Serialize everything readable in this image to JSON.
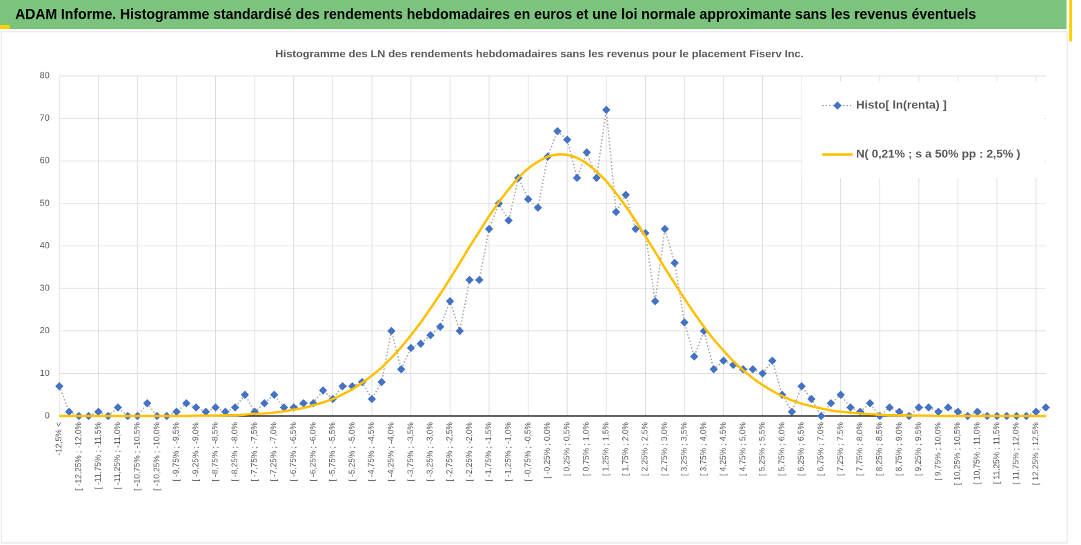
{
  "header": {
    "title": "ADAM Informe. Histogramme standardisé des rendements hebdomadaires en euros et une loi normale approximante sans les revenus éventuels"
  },
  "chart_data": {
    "type": "line",
    "title": "Histogramme des LN des rendements hebdomadaires sans les revenus pour le placement Fiserv Inc.",
    "categories": [
      "-12,5% <",
      null,
      "[ -12,25% ; -12,0%",
      null,
      "[ -11,75% ; -11,5%",
      null,
      "[ -11,25% ; -11,0%",
      null,
      "[ -10,75% ; -10,5%",
      null,
      "[ -10,25% ; -10,0%",
      null,
      "[ -9,75% ; -9,5%",
      null,
      "[ -9,25% ; -9,0%",
      null,
      "[ -8,75% ; -8,5%",
      null,
      "[ -8,25% ; -8,0%",
      null,
      "[ -7,75% ; -7,5%",
      null,
      "[ -7,25% ; -7,0%",
      null,
      "[ -6,75% ; -6,5%",
      null,
      "[ -6,25% ; -6,0%",
      null,
      "[ -5,75% ; -5,5%",
      null,
      "[ -5,25% ; -5,0%",
      null,
      "[ -4,75% ; -4,5%",
      null,
      "[ -4,25% ; -4,0%",
      null,
      "[ -3,75% ; -3,5%",
      null,
      "[ -3,25% ; -3,0%",
      null,
      "[ -2,75% ; -2,5%",
      null,
      "[ -2,25% ; -2,0%",
      null,
      "[ -1,75% ; -1,5%",
      null,
      "[ -1,25% ; -1,0%",
      null,
      "[ -0,75% ; -0,5%",
      null,
      "[ -0,25% ; 0,0%",
      null,
      "[ 0,25% ; 0,5%",
      null,
      "[ 0,75% ; 1,0%",
      null,
      "[ 1,25% ; 1,5%",
      null,
      "[ 1,75% ; 2,0%",
      null,
      "[ 2,25% ; 2,5%",
      null,
      "[ 2,75% ; 3,0%",
      null,
      "[ 3,25% ; 3,5%",
      null,
      "[ 3,75% ; 4,0%",
      null,
      "[ 4,25% ; 4,5%",
      null,
      "[ 4,75% ; 5,0%",
      null,
      "[ 5,25% ; 5,5%",
      null,
      "[ 5,75% ; 6,0%",
      null,
      "[ 6,25% ; 6,5%",
      null,
      "[ 6,75% ; 7,0%",
      null,
      "[ 7,25% ; 7,5%",
      null,
      "[ 7,75% ; 8,0%",
      null,
      "[ 8,25% ; 8,5%",
      null,
      "[ 8,75% ; 9,0%",
      null,
      "[ 9,25% ; 9,5%",
      null,
      "[ 9,75% ; 10,0%",
      null,
      "[ 10,25% ; 10,5%",
      null,
      "[ 10,75% ; 11,0%",
      null,
      "[ 11,25% ; 11,5%",
      null,
      "[ 11,75% ; 12,0%",
      null,
      "[ 12,25% ; 12,5%",
      null
    ],
    "series": [
      {
        "name": "Histo[ ln(renta) ]",
        "color": "#4472c4",
        "line_color": "#a5a5a5",
        "line_style": "dotted",
        "marker": "diamond",
        "values": [
          7,
          1,
          0,
          0,
          1,
          0,
          2,
          0,
          0,
          3,
          0,
          0,
          1,
          3,
          2,
          1,
          2,
          1,
          2,
          5,
          1,
          3,
          5,
          2,
          2,
          3,
          3,
          6,
          4,
          7,
          7,
          8,
          4,
          8,
          20,
          11,
          16,
          17,
          19,
          21,
          27,
          20,
          32,
          32,
          44,
          50,
          46,
          56,
          51,
          49,
          61,
          67,
          65,
          56,
          62,
          56,
          72,
          48,
          52,
          44,
          43,
          27,
          44,
          36,
          22,
          14,
          20,
          11,
          13,
          12,
          11,
          11,
          10,
          13,
          5,
          1,
          7,
          4,
          0,
          3,
          5,
          2,
          1,
          3,
          0,
          2,
          1,
          0,
          2,
          2,
          1,
          2,
          1,
          0,
          1,
          0,
          0,
          0,
          0,
          0,
          1,
          2
        ]
      },
      {
        "name": "N( 0,21% ; s a 50% pp : 2,5% )",
        "color": "#ffc000",
        "line_style": "solid",
        "marker": "none",
        "values": [
          0,
          0,
          0,
          0,
          0,
          0,
          0,
          0,
          0,
          0,
          0,
          0,
          0,
          0,
          0.1,
          0.1,
          0.1,
          0.2,
          0.2,
          0.3,
          0.5,
          0.6,
          0.8,
          1.1,
          1.5,
          1.9,
          2.5,
          3.2,
          4.0,
          5.1,
          6.3,
          7.8,
          9.5,
          11.4,
          13.7,
          16.2,
          19.0,
          22.0,
          25.3,
          28.7,
          32.3,
          36.0,
          39.8,
          43.4,
          47.0,
          50.3,
          53.3,
          56.0,
          58.2,
          59.8,
          61.0,
          61.5,
          61.4,
          60.7,
          59.4,
          57.5,
          55.2,
          52.4,
          49.3,
          45.9,
          42.3,
          38.6,
          34.8,
          31.2,
          27.6,
          24.2,
          21.0,
          18.0,
          15.4,
          12.9,
          10.8,
          8.9,
          7.3,
          5.9,
          4.7,
          3.7,
          2.9,
          2.3,
          1.8,
          1.3,
          1.0,
          0.8,
          0.6,
          0.4,
          0.3,
          0.2,
          0.2,
          0.1,
          0.1,
          0.1,
          0,
          0,
          0,
          0,
          0,
          0,
          0,
          0,
          0,
          0,
          0,
          0
        ]
      }
    ],
    "ylim": [
      0,
      80
    ],
    "yticks": [
      0,
      10,
      20,
      30,
      40,
      50,
      60,
      70,
      80
    ],
    "grid": true,
    "legend": "top-right"
  }
}
